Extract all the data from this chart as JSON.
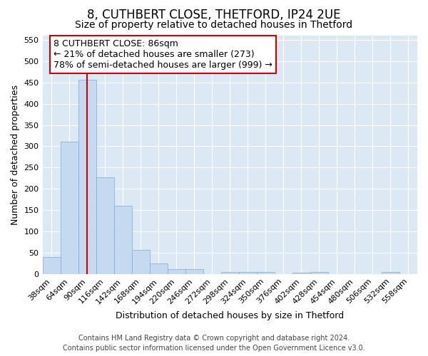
{
  "title1": "8, CUTHBERT CLOSE, THETFORD, IP24 2UE",
  "title2": "Size of property relative to detached houses in Thetford",
  "xlabel": "Distribution of detached houses by size in Thetford",
  "ylabel": "Number of detached properties",
  "categories": [
    "38sqm",
    "64sqm",
    "90sqm",
    "116sqm",
    "142sqm",
    "168sqm",
    "194sqm",
    "220sqm",
    "246sqm",
    "272sqm",
    "298sqm",
    "324sqm",
    "350sqm",
    "376sqm",
    "402sqm",
    "428sqm",
    "454sqm",
    "480sqm",
    "506sqm",
    "532sqm",
    "558sqm"
  ],
  "values": [
    40,
    310,
    457,
    228,
    160,
    57,
    25,
    12,
    12,
    0,
    5,
    5,
    5,
    0,
    3,
    5,
    0,
    0,
    0,
    5,
    0
  ],
  "bar_color": "#c5d9f0",
  "bar_edge_color": "#7aadd4",
  "red_line_x": 2,
  "bin_width": 26,
  "ylim": [
    0,
    560
  ],
  "yticks": [
    0,
    50,
    100,
    150,
    200,
    250,
    300,
    350,
    400,
    450,
    500,
    550
  ],
  "annotation_title": "8 CUTHBERT CLOSE: 86sqm",
  "annotation_line1": "← 21% of detached houses are smaller (273)",
  "annotation_line2": "78% of semi-detached houses are larger (999) →",
  "annotation_box_color": "#ffffff",
  "annotation_box_edge": "#cc0000",
  "footer1": "Contains HM Land Registry data © Crown copyright and database right 2024.",
  "footer2": "Contains public sector information licensed under the Open Government Licence v3.0.",
  "fig_bg_color": "#ffffff",
  "plot_bg_color": "#dde8f5",
  "grid_color": "#ffffff",
  "title1_fontsize": 12,
  "title2_fontsize": 10,
  "axis_label_fontsize": 9,
  "tick_fontsize": 8,
  "footer_fontsize": 7,
  "annot_fontsize": 9
}
